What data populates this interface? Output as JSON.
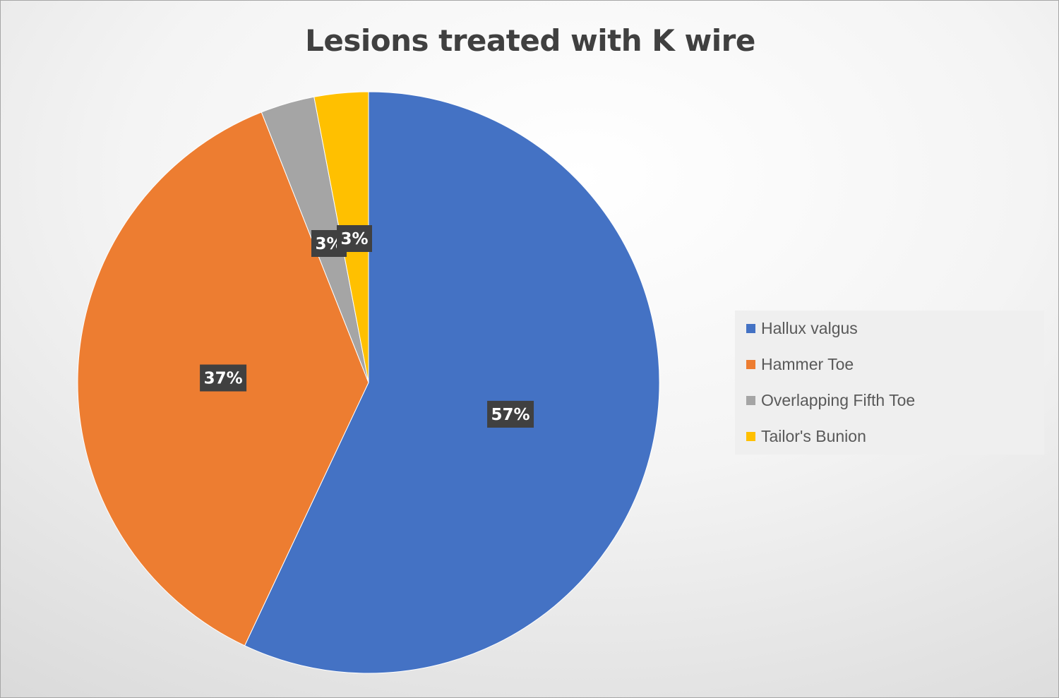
{
  "chart_data": {
    "type": "pie",
    "title": "Lesions treated with K wire",
    "slices": [
      {
        "name": "Hallux valgus",
        "value": 57,
        "label": "57%",
        "color": "#4472c4"
      },
      {
        "name": "Hammer Toe",
        "value": 37,
        "label": "37%",
        "color": "#ed7d31"
      },
      {
        "name": "Overlapping Fifth Toe",
        "value": 3,
        "label": "3%",
        "color": "#a5a5a5"
      },
      {
        "name": "Tailor's Bunion",
        "value": 3,
        "label": "3%",
        "color": "#ffc000"
      }
    ],
    "legend_position": "right"
  }
}
